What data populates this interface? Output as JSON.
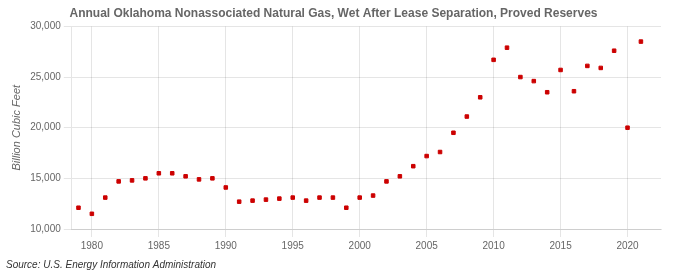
{
  "chart_data": {
    "type": "scatter",
    "title": "Annual Oklahoma Nonassociated Natural Gas, Wet After Lease Separation, Proved Reserves",
    "ylabel": "Billion Cubic Feet",
    "annotation": "Source: U.S. Energy Information Administration",
    "x": [
      1979,
      1980,
      1981,
      1982,
      1983,
      1984,
      1985,
      1986,
      1987,
      1988,
      1989,
      1990,
      1991,
      1992,
      1993,
      1994,
      1995,
      1996,
      1997,
      1998,
      1999,
      2000,
      2001,
      2002,
      2003,
      2004,
      2005,
      2006,
      2007,
      2008,
      2009,
      2010,
      2011,
      2012,
      2013,
      2014,
      2015,
      2016,
      2017,
      2018,
      2019,
      2020,
      2021
    ],
    "values": [
      12100,
      11500,
      13100,
      14700,
      14800,
      15000,
      15500,
      15500,
      15200,
      14900,
      15000,
      14100,
      12700,
      12800,
      12900,
      13000,
      13100,
      12800,
      13100,
      13100,
      12100,
      13100,
      13300,
      14700,
      15200,
      16200,
      17200,
      17600,
      19500,
      21100,
      23000,
      26700,
      27900,
      25000,
      24600,
      23500,
      25700,
      23600,
      26100,
      25900,
      27600,
      20000,
      28500
    ],
    "color": "#cc0000",
    "marker": "square",
    "xlim": [
      1978.5,
      2022.5
    ],
    "xticks": [
      1980,
      1985,
      1990,
      1995,
      2000,
      2005,
      2010,
      2015,
      2020
    ],
    "ylim": [
      10000,
      30000
    ],
    "yticks": [
      {
        "value": 10000,
        "label": "10,000"
      },
      {
        "value": 15000,
        "label": "15,000"
      },
      {
        "value": 20000,
        "label": "20,000"
      },
      {
        "value": 25000,
        "label": "25,000"
      },
      {
        "value": 30000,
        "label": "30,000"
      }
    ],
    "grid": true
  }
}
